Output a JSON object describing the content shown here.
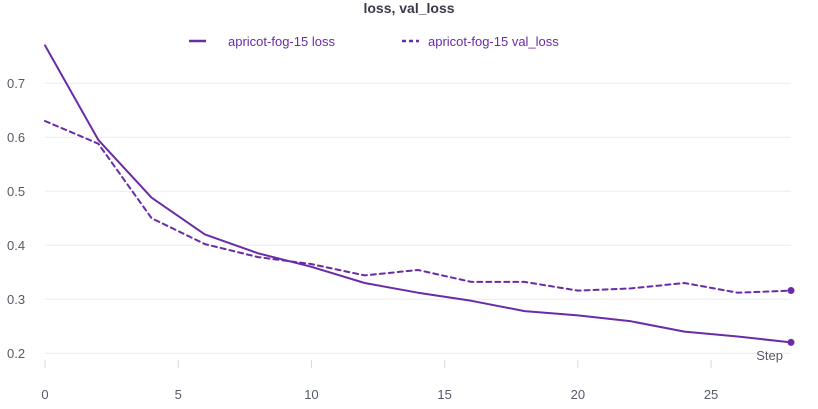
{
  "chart_data": {
    "type": "line",
    "title": "loss, val_loss",
    "xlabel": "Step",
    "ylabel": "",
    "xlim": [
      0,
      28
    ],
    "ylim": [
      0.18,
      0.78
    ],
    "xticks": [
      0,
      5,
      10,
      15,
      20,
      25
    ],
    "yticks": [
      0.2,
      0.3,
      0.4,
      0.5,
      0.6,
      0.7
    ],
    "grid": true,
    "legend_position": "top-center",
    "series": [
      {
        "name": "apricot-fog-15 loss",
        "style": "solid",
        "color": "#6a2ba8",
        "x": [
          0,
          2,
          4,
          6,
          8,
          10,
          12,
          14,
          16,
          18,
          20,
          22,
          24,
          26,
          28
        ],
        "y": [
          0.77,
          0.595,
          0.488,
          0.42,
          0.385,
          0.36,
          0.33,
          0.312,
          0.297,
          0.278,
          0.27,
          0.259,
          0.24,
          0.231,
          0.22
        ]
      },
      {
        "name": "apricot-fog-15 val_loss",
        "style": "dashed",
        "color": "#6a2ba8",
        "x": [
          0,
          2,
          4,
          6,
          8,
          10,
          12,
          14,
          16,
          18,
          20,
          22,
          24,
          26,
          28
        ],
        "y": [
          0.63,
          0.588,
          0.45,
          0.402,
          0.378,
          0.365,
          0.344,
          0.354,
          0.332,
          0.332,
          0.316,
          0.32,
          0.33,
          0.312,
          0.316
        ]
      }
    ]
  }
}
